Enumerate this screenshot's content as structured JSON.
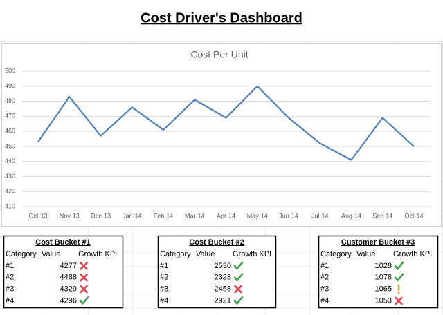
{
  "title": "Cost Driver's Dashboard",
  "chart_data": {
    "type": "line",
    "title": "Cost Per Unit",
    "categories": [
      "Oct-13",
      "Nov-13",
      "Dec-13",
      "Jan-14",
      "Feb-14",
      "Mar-14",
      "Apr-14",
      "May-14",
      "Jun-14",
      "Jul-14",
      "Aug-14",
      "Sep-14",
      "Oct-14"
    ],
    "values": [
      453,
      483,
      457,
      476,
      461,
      481,
      469,
      490,
      469,
      452,
      441,
      469,
      450
    ],
    "color": "#4f81bd",
    "ylim": [
      410,
      500
    ],
    "yticks": [
      410,
      420,
      430,
      440,
      450,
      460,
      470,
      480,
      490,
      500
    ],
    "grid": true
  },
  "tables": [
    {
      "title": "Cost Bucket #1",
      "columns": [
        "Category",
        "Value",
        "Growth KPI"
      ],
      "rows": [
        {
          "category": "#1",
          "value": 4277,
          "kpi": "cross"
        },
        {
          "category": "#2",
          "value": 4488,
          "kpi": "cross"
        },
        {
          "category": "#3",
          "value": 4329,
          "kpi": "cross"
        },
        {
          "category": "#4",
          "value": 4296,
          "kpi": "check"
        }
      ]
    },
    {
      "title": "Cost Bucket #2",
      "columns": [
        "Category",
        "Value",
        "Growth KPI"
      ],
      "rows": [
        {
          "category": "#1",
          "value": 2530,
          "kpi": "check"
        },
        {
          "category": "#2",
          "value": 2323,
          "kpi": "check"
        },
        {
          "category": "#3",
          "value": 2458,
          "kpi": "cross"
        },
        {
          "category": "#4",
          "value": 2921,
          "kpi": "check"
        }
      ]
    },
    {
      "title": "Customer Bucket #3",
      "columns": [
        "Category",
        "Value",
        "Growth KPI"
      ],
      "rows": [
        {
          "category": "#1",
          "value": 1028,
          "kpi": "check"
        },
        {
          "category": "#2",
          "value": 1078,
          "kpi": "check"
        },
        {
          "category": "#3",
          "value": 1065,
          "kpi": "warn"
        },
        {
          "category": "#4",
          "value": 1053,
          "kpi": "cross"
        }
      ]
    }
  ]
}
